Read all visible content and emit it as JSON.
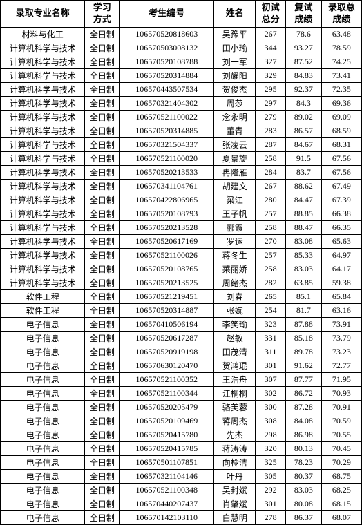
{
  "table": {
    "headers": [
      "录取专业名称",
      "学习方式",
      "考生编号",
      "姓名",
      "初试总分",
      "复试成绩",
      "录取总成绩"
    ],
    "columnWidths": [
      "col-major",
      "col-mode",
      "col-id",
      "col-name",
      "col-score1",
      "col-score2",
      "col-score3"
    ],
    "rows": [
      [
        "材料与化工",
        "全日制",
        "106570520818603",
        "吴豫平",
        "267",
        "78.6",
        "63.48"
      ],
      [
        "计算机科学与技术",
        "全日制",
        "106570503008132",
        "田小瑜",
        "344",
        "93.27",
        "78.59"
      ],
      [
        "计算机科学与技术",
        "全日制",
        "106570520108788",
        "刘一军",
        "327",
        "87.52",
        "74.25"
      ],
      [
        "计算机科学与技术",
        "全日制",
        "106570520314884",
        "刘耀阳",
        "329",
        "84.83",
        "73.41"
      ],
      [
        "计算机科学与技术",
        "全日制",
        "106570443507534",
        "贺俊杰",
        "295",
        "92.37",
        "72.35"
      ],
      [
        "计算机科学与技术",
        "全日制",
        "106570321404302",
        "周莎",
        "297",
        "84.3",
        "69.36"
      ],
      [
        "计算机科学与技术",
        "全日制",
        "106570521100022",
        "念永明",
        "279",
        "89.02",
        "69.09"
      ],
      [
        "计算机科学与技术",
        "全日制",
        "106570520314885",
        "董青",
        "283",
        "86.57",
        "68.59"
      ],
      [
        "计算机科学与技术",
        "全日制",
        "106570321504337",
        "张凌云",
        "287",
        "84.67",
        "68.31"
      ],
      [
        "计算机科学与技术",
        "全日制",
        "106570521100020",
        "夏景旋",
        "258",
        "91.5",
        "67.56"
      ],
      [
        "计算机科学与技术",
        "全日制",
        "106570520213533",
        "冉隆雁",
        "284",
        "83.7",
        "67.56"
      ],
      [
        "计算机科学与技术",
        "全日制",
        "106570341104761",
        "胡建文",
        "267",
        "88.62",
        "67.49"
      ],
      [
        "计算机科学与技术",
        "全日制",
        "106570422806965",
        "梁江",
        "280",
        "84.47",
        "67.39"
      ],
      [
        "计算机科学与技术",
        "全日制",
        "106570520108793",
        "王子帆",
        "257",
        "88.85",
        "66.38"
      ],
      [
        "计算机科学与技术",
        "全日制",
        "106570520213528",
        "郦霞",
        "258",
        "88.47",
        "66.35"
      ],
      [
        "计算机科学与技术",
        "全日制",
        "106570520617169",
        "罗运",
        "270",
        "83.08",
        "65.63"
      ],
      [
        "计算机科学与技术",
        "全日制",
        "106570521100026",
        "蒋冬生",
        "257",
        "85.33",
        "64.97"
      ],
      [
        "计算机科学与技术",
        "全日制",
        "106570520108765",
        "莱丽娇",
        "258",
        "83.03",
        "64.17"
      ],
      [
        "计算机科学与技术",
        "全日制",
        "106570520213525",
        "周绪杰",
        "282",
        "63.85",
        "59.38"
      ],
      [
        "软件工程",
        "全日制",
        "106570521219451",
        "刘春",
        "265",
        "85.1",
        "65.84"
      ],
      [
        "软件工程",
        "全日制",
        "106570520314887",
        "张婉",
        "254",
        "81.7",
        "63.16"
      ],
      [
        "电子信息",
        "全日制",
        "106570410506194",
        "李笑瑜",
        "323",
        "87.88",
        "73.91"
      ],
      [
        "电子信息",
        "全日制",
        "106570520617287",
        "赵敏",
        "331",
        "85.18",
        "73.79"
      ],
      [
        "电子信息",
        "全日制",
        "106570520919198",
        "田茂清",
        "311",
        "89.78",
        "73.23"
      ],
      [
        "电子信息",
        "全日制",
        "106570630120470",
        "贺鸿琨",
        "301",
        "91.62",
        "72.77"
      ],
      [
        "电子信息",
        "全日制",
        "106570521100352",
        "王浩舟",
        "307",
        "87.77",
        "71.95"
      ],
      [
        "电子信息",
        "全日制",
        "106570521100344",
        "江桐桐",
        "302",
        "86.72",
        "70.93"
      ],
      [
        "电子信息",
        "全日制",
        "106570520205479",
        "骆芙蓉",
        "300",
        "87.28",
        "70.91"
      ],
      [
        "电子信息",
        "全日制",
        "106570520109469",
        "蒋周杰",
        "308",
        "84.08",
        "70.59"
      ],
      [
        "电子信息",
        "全日制",
        "106570520415780",
        "先杰",
        "298",
        "86.98",
        "70.55"
      ],
      [
        "电子信息",
        "全日制",
        "106570520415785",
        "蒋涛涛",
        "320",
        "80.13",
        "70.45"
      ],
      [
        "电子信息",
        "全日制",
        "106570501107851",
        "向柃洁",
        "325",
        "78.23",
        "70.29"
      ],
      [
        "电子信息",
        "全日制",
        "106570321104146",
        "叶丹",
        "305",
        "80.37",
        "68.75"
      ],
      [
        "电子信息",
        "全日制",
        "106570521100348",
        "吴封斌",
        "292",
        "83.03",
        "68.25"
      ],
      [
        "电子信息",
        "全日制",
        "106570440207437",
        "肖肇斌",
        "301",
        "80.08",
        "68.15"
      ],
      [
        "电子信息",
        "全日制",
        "106570142103110",
        "白慧明",
        "278",
        "86.37",
        "68.07"
      ]
    ],
    "styling": {
      "border_color": "#000000",
      "background_color": "#ffffff",
      "header_fontsize": 13,
      "cell_fontsize": 12,
      "font_family": "SimSun",
      "text_color": "#000000",
      "header_font_weight": "bold"
    }
  }
}
